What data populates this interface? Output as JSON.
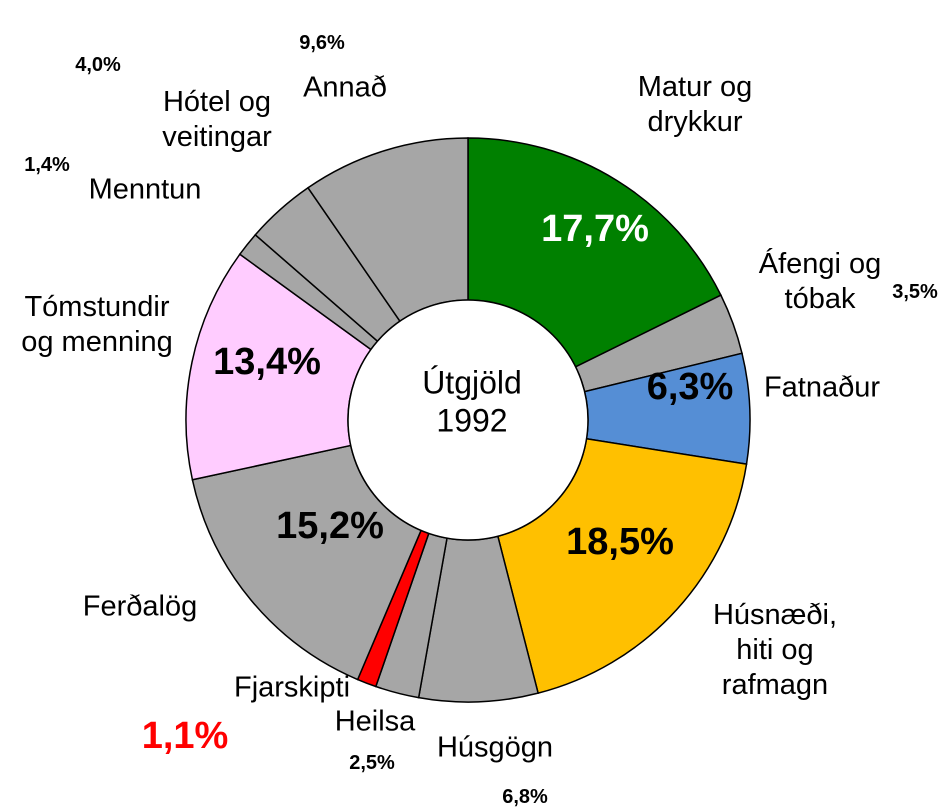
{
  "chart_data": {
    "type": "donut",
    "center_label": "Útgjöld\n1992",
    "categories": [
      "Matur og\ndrykkur",
      "Áfengi og\ntóbak",
      "Fatnaður",
      "Húsnæði,\nhiti og\nrafmagn",
      "Húsgögn",
      "Heilsa",
      "Fjarskipti",
      "Ferðalög",
      "Tómstundir\nog menning",
      "Menntun",
      "Hótel og\nveitingar",
      "Annað"
    ],
    "values": [
      17.7,
      3.5,
      6.3,
      18.5,
      6.8,
      2.5,
      1.1,
      15.2,
      13.4,
      1.4,
      4.0,
      9.6
    ],
    "value_labels": [
      "17,7%",
      "3,5%",
      "6,3%",
      "18,5%",
      "6,8%",
      "2,5%",
      "1,1%",
      "15,2%",
      "13,4%",
      "1,4%",
      "4,0%",
      "9,6%"
    ],
    "colors": [
      "#008000",
      "#a6a6a6",
      "#558ed5",
      "#ffc000",
      "#a6a6a6",
      "#a6a6a6",
      "#ff0000",
      "#a6a6a6",
      "#ffccff",
      "#a6a6a6",
      "#a6a6a6",
      "#a6a6a6"
    ]
  }
}
